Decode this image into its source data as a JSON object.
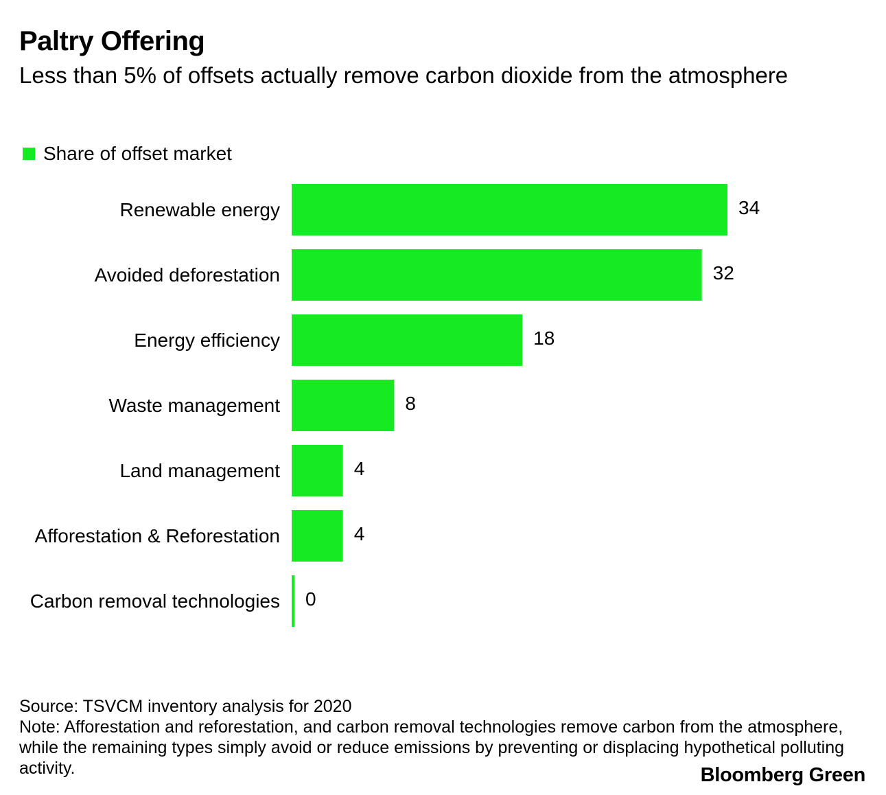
{
  "title": "Paltry Offering",
  "subtitle": "Less than 5% of offsets actually remove carbon dioxide from the atmosphere",
  "legend": {
    "label": "Share of offset market",
    "color": "#15ea22"
  },
  "chart_data": {
    "type": "bar",
    "orientation": "horizontal",
    "title": "Paltry Offering",
    "subtitle": "Less than 5% of offsets actually remove carbon dioxide from the atmosphere",
    "categories": [
      "Renewable energy",
      "Avoided deforestation",
      "Energy efficiency",
      "Waste management",
      "Land management",
      "Afforestation & Reforestation",
      "Carbon removal technologies"
    ],
    "series": [
      {
        "name": "Share of offset market",
        "values": [
          34,
          32,
          18,
          8,
          4,
          4,
          0
        ],
        "color": "#15ea22"
      }
    ],
    "xlim": [
      0,
      34
    ],
    "xlabel": "",
    "ylabel": "",
    "grid": false,
    "legend_position": "top-left",
    "data_labels": true
  },
  "source": "Source: TSVCM inventory analysis for 2020",
  "note": "Note: Afforestation and reforestation, and carbon removal technologies remove carbon from the atmosphere, while the remaining types simply avoid or reduce emissions by preventing or displacing hypothetical polluting activity.",
  "brand": "Bloomberg Green"
}
